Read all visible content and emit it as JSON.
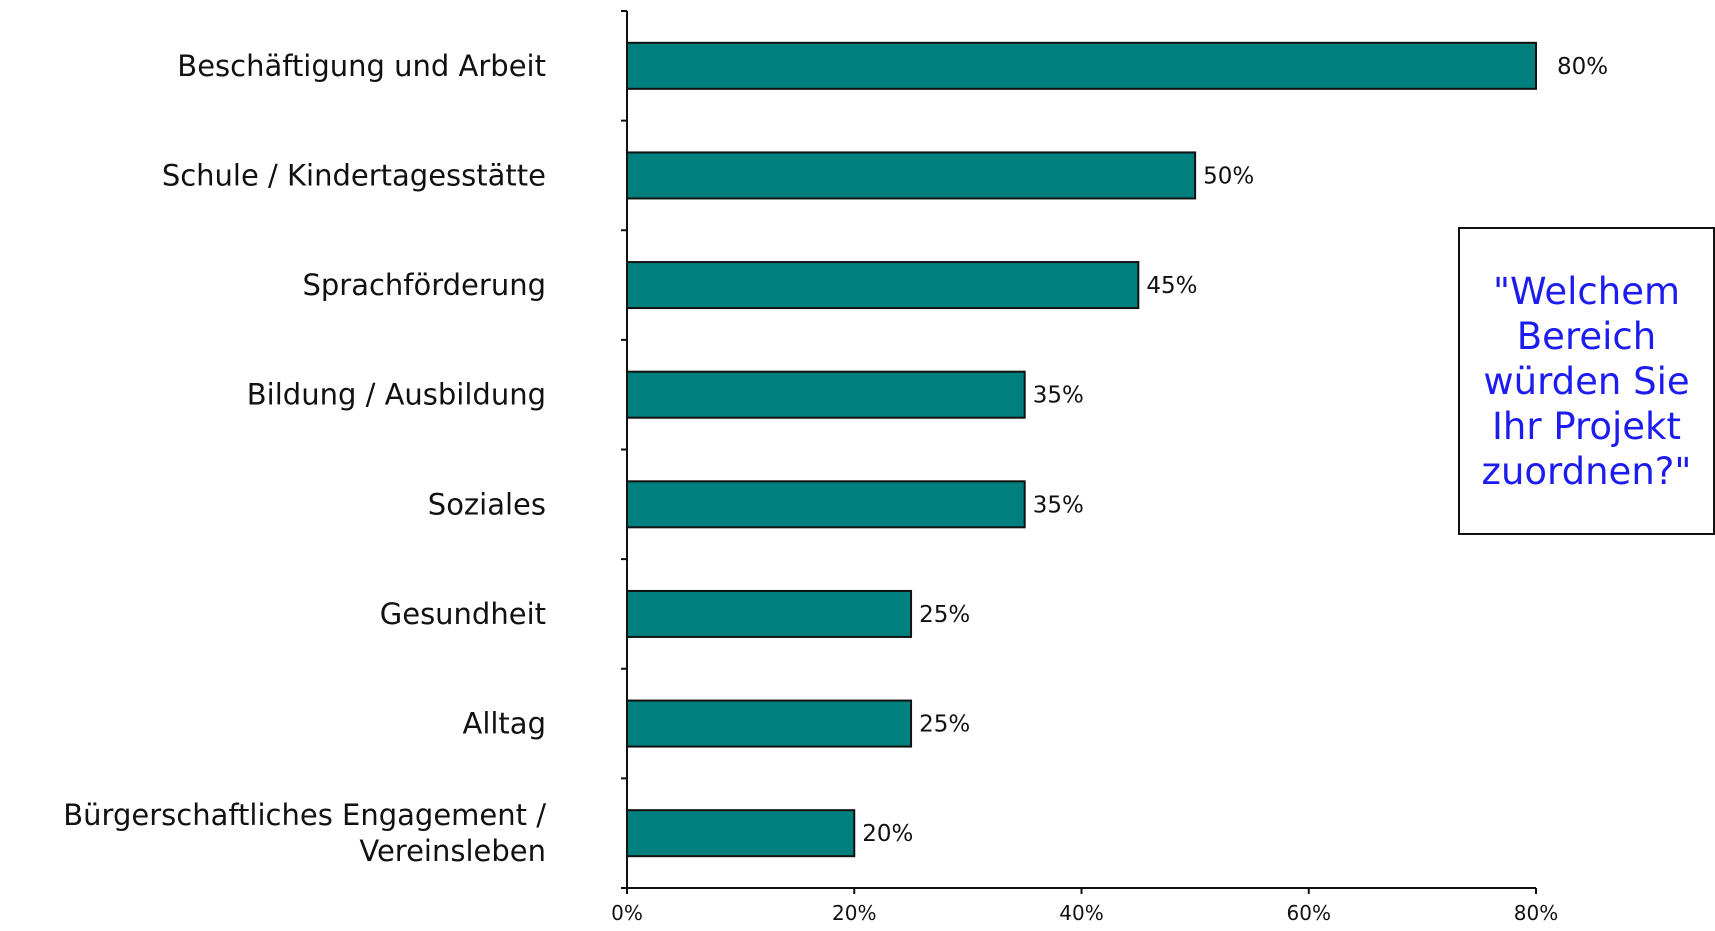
{
  "chart_data": {
    "type": "bar",
    "orientation": "horizontal",
    "categories": [
      "Beschäftigung und Arbeit",
      "Schule / Kindertagesstätte",
      "Sprachförderung",
      "Bildung / Ausbildung",
      "Soziales",
      "Gesundheit",
      "Alltag",
      "Bürgerschaftliches Engagement / Vereinsleben"
    ],
    "category_lines": [
      [
        "Beschäftigung und Arbeit"
      ],
      [
        "Schule / Kindertagesstätte"
      ],
      [
        "Sprachförderung"
      ],
      [
        "Bildung / Ausbildung"
      ],
      [
        "Soziales"
      ],
      [
        "Gesundheit"
      ],
      [
        "Alltag"
      ],
      [
        "Bürgerschaftliches Engagement /",
        "Vereinsleben"
      ]
    ],
    "values": [
      80,
      50,
      45,
      35,
      35,
      25,
      25,
      20
    ],
    "data_labels": [
      "80%",
      "50%",
      "45%",
      "35%",
      "35%",
      "25%",
      "25%",
      "20%"
    ],
    "x_ticks": [
      0,
      20,
      40,
      60,
      80
    ],
    "x_tick_labels": [
      "0%",
      "20%",
      "40%",
      "60%",
      "80%"
    ],
    "xlim": [
      0,
      80
    ],
    "bar_color": "#007f7f",
    "bar_outline": "#111111",
    "grid": false,
    "legend": "none",
    "title": "",
    "xlabel": "",
    "ylabel": ""
  },
  "annotation": {
    "text": "\"Welchem Bereich würden Sie Ihr Projekt zuordnen?\"",
    "color": "#1c1cf0"
  }
}
